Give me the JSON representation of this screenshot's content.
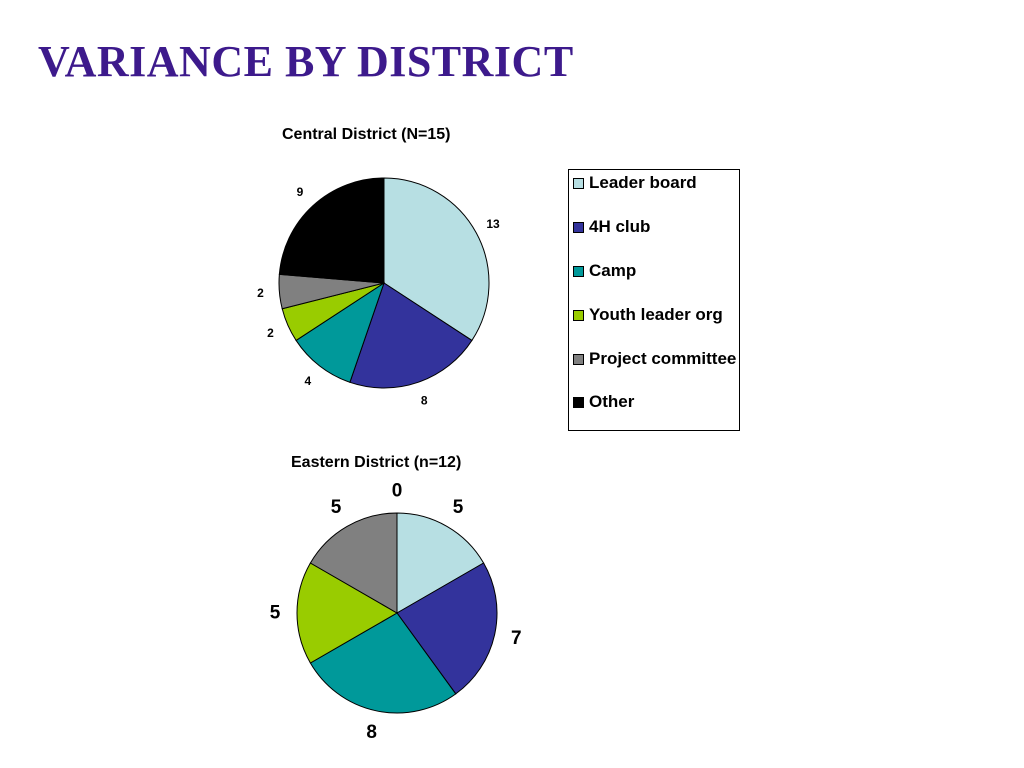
{
  "slide_title": "VARIANCE BY DISTRICT",
  "legend": {
    "items": [
      {
        "label": "Leader board",
        "color": "#b7dfe3"
      },
      {
        "label": "4H club",
        "color": "#33339c"
      },
      {
        "label": "Camp",
        "color": "#00999a"
      },
      {
        "label": "Youth leader org",
        "color": "#99cc00"
      },
      {
        "label": "Project committee",
        "color": "#808080"
      },
      {
        "label": "Other",
        "color": "#000000"
      }
    ]
  },
  "chart_data": [
    {
      "type": "pie",
      "title": "Central District (N=15)",
      "categories": [
        "Leader board",
        "4H club",
        "Camp",
        "Youth leader org",
        "Project committee",
        "Other"
      ],
      "values": [
        13,
        8,
        4,
        2,
        2,
        9
      ],
      "data_labels": [
        "13",
        "8",
        "4",
        "2",
        "2",
        "9"
      ],
      "colors": [
        "#b7dfe3",
        "#33339c",
        "#00999a",
        "#99cc00",
        "#808080",
        "#000000"
      ]
    },
    {
      "type": "pie",
      "title": "Eastern District (n=12)",
      "categories": [
        "Leader board",
        "4H club",
        "Camp",
        "Youth leader org",
        "Project committee",
        "Other"
      ],
      "values": [
        5,
        7,
        8,
        5,
        5,
        0
      ],
      "data_labels": [
        "5",
        "7",
        "8",
        "5",
        "5",
        "0"
      ],
      "colors": [
        "#b7dfe3",
        "#33339c",
        "#00999a",
        "#99cc00",
        "#808080",
        "#000000"
      ]
    }
  ]
}
